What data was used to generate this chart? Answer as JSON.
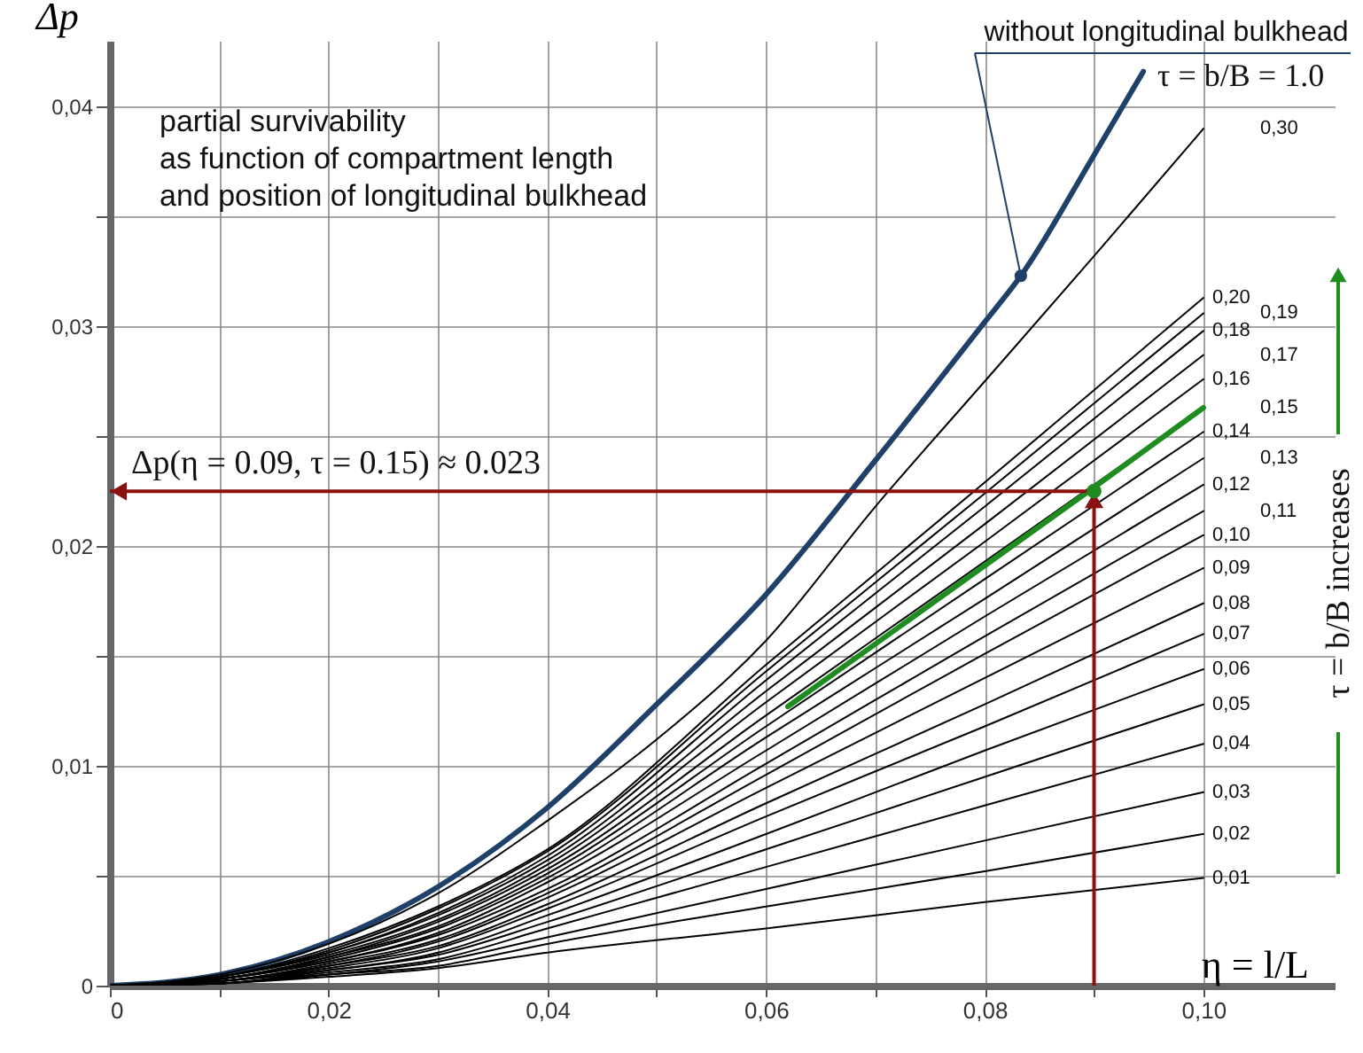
{
  "chart_data": {
    "type": "line",
    "xlabel": "η = l/L",
    "ylabel": "Δp",
    "xlim": [
      0,
      0.112
    ],
    "ylim": [
      0,
      0.043
    ],
    "xticks": [
      {
        "value": 0,
        "label": "0"
      },
      {
        "value": 0.01,
        "label": null
      },
      {
        "value": 0.02,
        "label": "0,02"
      },
      {
        "value": 0.03,
        "label": null
      },
      {
        "value": 0.04,
        "label": "0,04"
      },
      {
        "value": 0.05,
        "label": null
      },
      {
        "value": 0.06,
        "label": "0,06"
      },
      {
        "value": 0.07,
        "label": null
      },
      {
        "value": 0.08,
        "label": "0,08"
      },
      {
        "value": 0.09,
        "label": null
      },
      {
        "value": 0.1,
        "label": "0,10"
      }
    ],
    "yticks": [
      {
        "value": 0,
        "label": "0"
      },
      {
        "value": 0.005,
        "label": null
      },
      {
        "value": 0.01,
        "label": "0,01"
      },
      {
        "value": 0.015,
        "label": null
      },
      {
        "value": 0.02,
        "label": "0,02"
      },
      {
        "value": 0.025,
        "label": null
      },
      {
        "value": 0.03,
        "label": "0,03"
      },
      {
        "value": 0.035,
        "label": null
      },
      {
        "value": 0.04,
        "label": "0,04"
      }
    ],
    "grid": true,
    "series": [
      {
        "name": "τ = b/B = 1.0",
        "color": "#1f4068",
        "x": [
          0,
          0.01,
          0.02,
          0.03,
          0.04,
          0.05,
          0.06,
          0.07,
          0.08,
          0.0833,
          0.09,
          0.0945
        ],
        "values": [
          0,
          0.0005,
          0.002,
          0.0045,
          0.0081,
          0.0128,
          0.0178,
          0.0239,
          0.0302,
          0.0323,
          0.0378,
          0.0416
        ]
      },
      {
        "name": "0,30",
        "color": "#000000",
        "x": [
          0,
          0.01,
          0.02,
          0.03,
          0.04,
          0.05,
          0.06,
          0.07,
          0.08,
          0.09,
          0.1
        ],
        "values": [
          0,
          0.0005,
          0.0019,
          0.0042,
          0.0075,
          0.0112,
          0.0157,
          0.0218,
          0.0275,
          0.0332,
          0.039
        ]
      },
      {
        "name": "0,20",
        "color": "#000000",
        "x": [
          0,
          0.01,
          0.02,
          0.03,
          0.04,
          0.06,
          0.08,
          0.1
        ],
        "values": [
          0,
          0.0004,
          0.0017,
          0.0036,
          0.0062,
          0.0146,
          0.0229,
          0.0313
        ]
      },
      {
        "name": "0,19",
        "color": "#000000",
        "x": [
          0,
          0.01,
          0.02,
          0.03,
          0.04,
          0.06,
          0.08,
          0.1
        ],
        "values": [
          0,
          0.0004,
          0.0016,
          0.0035,
          0.0061,
          0.0143,
          0.0224,
          0.0306
        ]
      },
      {
        "name": "0,18",
        "color": "#000000",
        "x": [
          0,
          0.01,
          0.02,
          0.03,
          0.04,
          0.06,
          0.08,
          0.1
        ],
        "values": [
          0,
          0.0004,
          0.0015,
          0.0033,
          0.0059,
          0.0139,
          0.0218,
          0.0298
        ]
      },
      {
        "name": "0,17",
        "color": "#000000",
        "x": [
          0,
          0.01,
          0.02,
          0.03,
          0.04,
          0.06,
          0.08,
          0.1
        ],
        "values": [
          0,
          0.0004,
          0.0015,
          0.0032,
          0.0057,
          0.0134,
          0.021,
          0.0287
        ]
      },
      {
        "name": "0,16",
        "color": "#000000",
        "x": [
          0,
          0.01,
          0.02,
          0.03,
          0.04,
          0.06,
          0.08,
          0.1
        ],
        "values": [
          0,
          0.0004,
          0.0014,
          0.003,
          0.0055,
          0.0129,
          0.0202,
          0.0276
        ]
      },
      {
        "name": "0,15",
        "color": "#000000",
        "x": [
          0,
          0.01,
          0.02,
          0.03,
          0.04,
          0.06,
          0.08,
          0.1
        ],
        "values": [
          0,
          0.0003,
          0.0013,
          0.0029,
          0.0053,
          0.0123,
          0.0193,
          0.0263
        ]
      },
      {
        "name": "0,14",
        "color": "#000000",
        "x": [
          0,
          0.01,
          0.02,
          0.03,
          0.04,
          0.06,
          0.08,
          0.1
        ],
        "values": [
          0,
          0.0003,
          0.0013,
          0.0027,
          0.0051,
          0.0118,
          0.0185,
          0.0252
        ]
      },
      {
        "name": "0,13",
        "color": "#000000",
        "x": [
          0,
          0.01,
          0.02,
          0.03,
          0.04,
          0.06,
          0.08,
          0.1
        ],
        "values": [
          0,
          0.0003,
          0.0012,
          0.0026,
          0.0049,
          0.0113,
          0.0176,
          0.024
        ]
      },
      {
        "name": "0,12",
        "color": "#000000",
        "x": [
          0,
          0.01,
          0.02,
          0.03,
          0.04,
          0.06,
          0.08,
          0.1
        ],
        "values": [
          0,
          0.0003,
          0.0011,
          0.0024,
          0.0047,
          0.0107,
          0.0168,
          0.0228
        ]
      },
      {
        "name": "0,11",
        "color": "#000000",
        "x": [
          0,
          0.01,
          0.02,
          0.03,
          0.04,
          0.06,
          0.08,
          0.1
        ],
        "values": [
          0,
          0.0003,
          0.0011,
          0.0023,
          0.0044,
          0.0101,
          0.0159,
          0.0216
        ]
      },
      {
        "name": "0,10",
        "color": "#000000",
        "x": [
          0,
          0.01,
          0.02,
          0.03,
          0.04,
          0.06,
          0.08,
          0.1
        ],
        "values": [
          0,
          0.0002,
          0.001,
          0.0021,
          0.0042,
          0.0096,
          0.0151,
          0.0205
        ]
      },
      {
        "name": "0,09",
        "color": "#000000",
        "x": [
          0,
          0.01,
          0.02,
          0.03,
          0.04,
          0.06,
          0.08,
          0.1
        ],
        "values": [
          0,
          0.0002,
          0.0009,
          0.002,
          0.004,
          0.009,
          0.014,
          0.019
        ]
      },
      {
        "name": "0,08",
        "color": "#000000",
        "x": [
          0,
          0.01,
          0.02,
          0.03,
          0.04,
          0.06,
          0.08,
          0.1
        ],
        "values": [
          0,
          0.0002,
          0.0009,
          0.0018,
          0.0037,
          0.0083,
          0.0128,
          0.0174
        ]
      },
      {
        "name": "0,07",
        "color": "#000000",
        "x": [
          0,
          0.01,
          0.02,
          0.03,
          0.04,
          0.06,
          0.08,
          0.1
        ],
        "values": [
          0,
          0.0002,
          0.0008,
          0.0017,
          0.0035,
          0.0077,
          0.0118,
          0.016
        ]
      },
      {
        "name": "0,06",
        "color": "#000000",
        "x": [
          0,
          0.01,
          0.02,
          0.03,
          0.04,
          0.06,
          0.08,
          0.1
        ],
        "values": [
          0,
          0.0002,
          0.0007,
          0.0015,
          0.0032,
          0.0069,
          0.0107,
          0.0144
        ]
      },
      {
        "name": "0,05",
        "color": "#000000",
        "x": [
          0,
          0.01,
          0.02,
          0.03,
          0.04,
          0.06,
          0.08,
          0.1
        ],
        "values": [
          0,
          0.0001,
          0.0007,
          0.0014,
          0.0029,
          0.0062,
          0.0095,
          0.0128
        ]
      },
      {
        "name": "0,04",
        "color": "#000000",
        "x": [
          0,
          0.01,
          0.02,
          0.03,
          0.04,
          0.06,
          0.08,
          0.1
        ],
        "values": [
          0,
          0.0001,
          0.0006,
          0.0012,
          0.0026,
          0.0054,
          0.0082,
          0.011
        ]
      },
      {
        "name": "0,03",
        "color": "#000000",
        "x": [
          0,
          0.01,
          0.02,
          0.03,
          0.04,
          0.06,
          0.08,
          0.1
        ],
        "values": [
          0,
          0.0001,
          0.0005,
          0.0011,
          0.0022,
          0.0044,
          0.0066,
          0.0088
        ]
      },
      {
        "name": "0,02",
        "color": "#000000",
        "x": [
          0,
          0.01,
          0.02,
          0.03,
          0.04,
          0.06,
          0.08,
          0.1
        ],
        "values": [
          0,
          0.0001,
          0.0005,
          0.0009,
          0.0019,
          0.0036,
          0.0052,
          0.0069
        ]
      },
      {
        "name": "0,01",
        "color": "#000000",
        "x": [
          0,
          0.01,
          0.02,
          0.03,
          0.04,
          0.06,
          0.08,
          0.1
        ],
        "values": [
          0,
          0.0001,
          0.0004,
          0.0008,
          0.0015,
          0.0026,
          0.0038,
          0.0049
        ]
      },
      {
        "color": "#1e8c1e",
        "x": [
          0.062,
          0.0895,
          0.1
        ],
        "values": [
          0.0127,
          0.0225,
          0.0263
        ]
      }
    ],
    "annotations": [
      "partial survivability\nas function of compartment length\nand position of longitudinal bulkhead",
      {
        "text": "without longitudinal bulkhead",
        "x": 0.0833,
        "y": 0.0323
      },
      {
        "text": "Δp(η = 0.09, τ = 0.15) ≈ 0.023",
        "x": 0.09,
        "y": 0.0225
      },
      "τ = b/B  increases"
    ]
  }
}
